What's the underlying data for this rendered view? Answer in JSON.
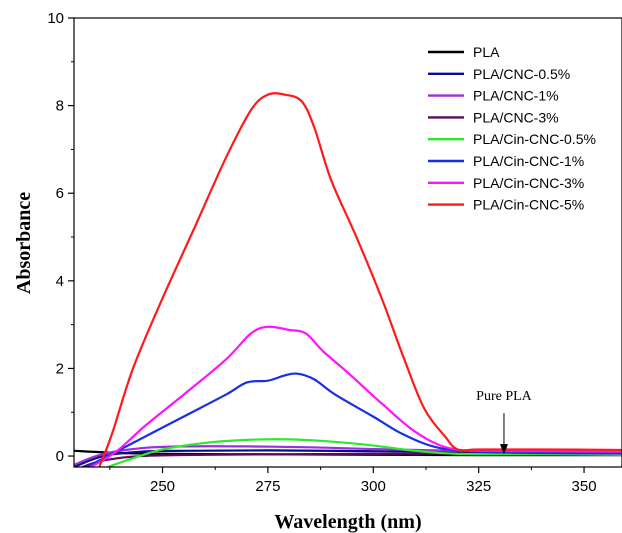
{
  "chart_data": {
    "type": "line",
    "xlabel": "Wavelength (nm)",
    "ylabel": "Absorbance",
    "xlim": [
      229,
      359
    ],
    "ylim": [
      -0.25,
      10
    ],
    "xticks": [
      250,
      275,
      300,
      325,
      350
    ],
    "yticks": [
      0,
      2,
      4,
      6,
      8,
      10
    ],
    "grid": false,
    "legend_position": "top-right",
    "annotations": [
      {
        "text": "Pure PLA",
        "arrow_to": [
          331,
          0.02
        ]
      }
    ],
    "series": [
      {
        "name": "PLA",
        "color": "#000000",
        "points": [
          [
            229,
            0.12
          ],
          [
            240,
            0.07
          ],
          [
            250,
            0.05
          ],
          [
            275,
            0.04
          ],
          [
            300,
            0.03
          ],
          [
            325,
            0.02
          ],
          [
            359,
            0.02
          ]
        ]
      },
      {
        "name": "PLA/CNC-0.5%",
        "color": "#0b0b8c",
        "points": [
          [
            229,
            -0.25
          ],
          [
            236,
            0.0
          ],
          [
            245,
            0.1
          ],
          [
            255,
            0.12
          ],
          [
            275,
            0.13
          ],
          [
            300,
            0.11
          ],
          [
            325,
            0.09
          ],
          [
            359,
            0.08
          ]
        ]
      },
      {
        "name": "PLA/CNC-1%",
        "color": "#9b30d9",
        "points": [
          [
            229,
            -0.2
          ],
          [
            236,
            0.05
          ],
          [
            245,
            0.18
          ],
          [
            255,
            0.22
          ],
          [
            270,
            0.22
          ],
          [
            285,
            0.2
          ],
          [
            300,
            0.16
          ],
          [
            320,
            0.12
          ],
          [
            340,
            0.1
          ],
          [
            359,
            0.09
          ]
        ]
      },
      {
        "name": "PLA/CNC-3%",
        "color": "#5a0a5a",
        "points": [
          [
            231,
            -0.25
          ],
          [
            236,
            -0.1
          ],
          [
            245,
            0.0
          ],
          [
            260,
            0.03
          ],
          [
            280,
            0.04
          ],
          [
            300,
            0.05
          ],
          [
            330,
            0.06
          ],
          [
            359,
            0.06
          ]
        ]
      },
      {
        "name": "PLA/Cin-CNC-0.5%",
        "color": "#2ee82e",
        "points": [
          [
            237,
            -0.25
          ],
          [
            243,
            -0.05
          ],
          [
            250,
            0.15
          ],
          [
            260,
            0.3
          ],
          [
            270,
            0.37
          ],
          [
            280,
            0.38
          ],
          [
            290,
            0.33
          ],
          [
            300,
            0.24
          ],
          [
            310,
            0.12
          ],
          [
            320,
            0.05
          ],
          [
            340,
            0.04
          ],
          [
            359,
            0.03
          ]
        ]
      },
      {
        "name": "PLA/Cin-CNC-1%",
        "color": "#1a2ee8",
        "points": [
          [
            232,
            -0.25
          ],
          [
            238,
            0.05
          ],
          [
            245,
            0.4
          ],
          [
            255,
            0.9
          ],
          [
            265,
            1.4
          ],
          [
            270,
            1.68
          ],
          [
            275,
            1.72
          ],
          [
            279,
            1.84
          ],
          [
            282,
            1.88
          ],
          [
            286,
            1.75
          ],
          [
            291,
            1.4
          ],
          [
            300,
            0.9
          ],
          [
            307,
            0.5
          ],
          [
            315,
            0.2
          ],
          [
            325,
            0.1
          ],
          [
            340,
            0.07
          ],
          [
            359,
            0.06
          ]
        ]
      },
      {
        "name": "PLA/Cin-CNC-3%",
        "color": "#ff12ff",
        "points": [
          [
            233,
            -0.25
          ],
          [
            239,
            0.1
          ],
          [
            246,
            0.7
          ],
          [
            255,
            1.4
          ],
          [
            265,
            2.2
          ],
          [
            271,
            2.8
          ],
          [
            275,
            2.95
          ],
          [
            280,
            2.88
          ],
          [
            284,
            2.8
          ],
          [
            288,
            2.4
          ],
          [
            294,
            1.9
          ],
          [
            302,
            1.2
          ],
          [
            310,
            0.55
          ],
          [
            318,
            0.18
          ],
          [
            328,
            0.12
          ],
          [
            345,
            0.11
          ],
          [
            359,
            0.1
          ]
        ]
      },
      {
        "name": "PLA/Cin-CNC-5%",
        "color": "#ff1a1a",
        "points": [
          [
            235,
            -0.25
          ],
          [
            238,
            0.5
          ],
          [
            243,
            2.0
          ],
          [
            250,
            3.6
          ],
          [
            258,
            5.3
          ],
          [
            265,
            6.8
          ],
          [
            271,
            7.9
          ],
          [
            275,
            8.25
          ],
          [
            279,
            8.25
          ],
          [
            283,
            8.1
          ],
          [
            286,
            7.5
          ],
          [
            290,
            6.3
          ],
          [
            296,
            5.0
          ],
          [
            302,
            3.6
          ],
          [
            307,
            2.3
          ],
          [
            312,
            1.1
          ],
          [
            317,
            0.45
          ],
          [
            320,
            0.15
          ],
          [
            325,
            0.15
          ],
          [
            340,
            0.15
          ],
          [
            359,
            0.14
          ]
        ]
      }
    ]
  }
}
